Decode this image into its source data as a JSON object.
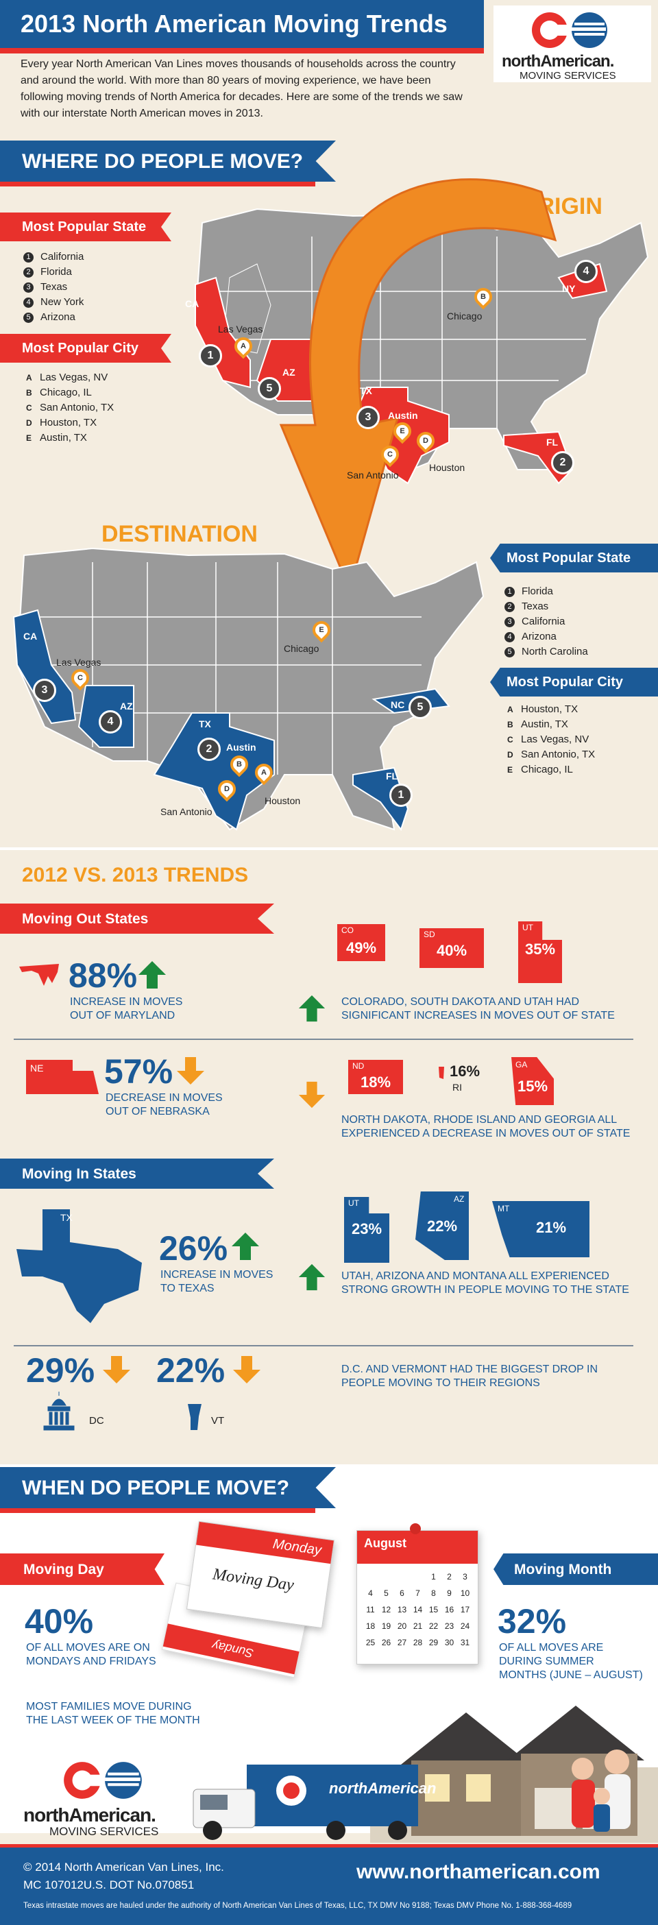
{
  "header": {
    "title": "2013 North American Moving Trends",
    "intro": "Every year North American Van Lines moves thousands of households across the country and around the world. With more than 80 years of moving experience, we have been following moving trends of North America for decades. Here are some of the trends we saw with our interstate North American moves in 2013.",
    "logo_name": "northAmerican.",
    "logo_sub": "MOVING SERVICES"
  },
  "where": {
    "banner": "WHERE DO PEOPLE MOVE?",
    "origin_label": "ORIGIN",
    "destination_label": "DESTINATION",
    "origin": {
      "state_title": "Most Popular State",
      "states": [
        "California",
        "Florida",
        "Texas",
        "New York",
        "Arizona"
      ],
      "city_title": "Most Popular City",
      "cities": [
        {
          "letter": "A",
          "name": "Las Vegas, NV"
        },
        {
          "letter": "B",
          "name": "Chicago, IL"
        },
        {
          "letter": "C",
          "name": "San Antonio, TX"
        },
        {
          "letter": "D",
          "name": "Houston, TX"
        },
        {
          "letter": "E",
          "name": "Austin, TX"
        }
      ],
      "map_labels": [
        "CA",
        "AZ",
        "TX",
        "FL",
        "NY",
        "Las Vegas",
        "Chicago",
        "Austin",
        "San Antonio",
        "Houston"
      ]
    },
    "destination": {
      "state_title": "Most Popular State",
      "states": [
        "Florida",
        "Texas",
        "California",
        "Arizona",
        "North Carolina"
      ],
      "city_title": "Most Popular City",
      "cities": [
        {
          "letter": "A",
          "name": "Houston, TX"
        },
        {
          "letter": "B",
          "name": "Austin, TX"
        },
        {
          "letter": "C",
          "name": "Las Vegas, NV"
        },
        {
          "letter": "D",
          "name": "San Antonio, TX"
        },
        {
          "letter": "E",
          "name": "Chicago, IL"
        }
      ],
      "map_labels": [
        "CA",
        "AZ",
        "TX",
        "FL",
        "NC",
        "Las Vegas",
        "Chicago",
        "Austin",
        "San Antonio",
        "Houston"
      ]
    }
  },
  "trends": {
    "title": "2012 VS. 2013 TRENDS",
    "out_banner": "Moving Out States",
    "md_pct": "88%",
    "md_text": "INCREASE IN MOVES OUT OF MARYLAND",
    "out_up": [
      {
        "st": "CO",
        "pct": "49%"
      },
      {
        "st": "SD",
        "pct": "40%"
      },
      {
        "st": "UT",
        "pct": "35%"
      }
    ],
    "out_up_text": "COLORADO, SOUTH DAKOTA AND UTAH HAD SIGNIFICANT INCREASES IN MOVES OUT OF STATE",
    "ne_label": "NE",
    "ne_pct": "57%",
    "ne_text": "DECREASE IN MOVES OUT OF NEBRASKA",
    "out_down": [
      {
        "st": "ND",
        "pct": "18%"
      },
      {
        "st": "RI",
        "pct": "16%"
      },
      {
        "st": "GA",
        "pct": "15%"
      }
    ],
    "out_down_text": "NORTH DAKOTA, RHODE ISLAND AND GEORGIA ALL EXPERIENCED A DECREASE IN MOVES OUT OF STATE",
    "in_banner": "Moving In States",
    "tx_label": "TX",
    "tx_pct": "26%",
    "tx_text": "INCREASE IN MOVES TO TEXAS",
    "in_up": [
      {
        "st": "UT",
        "pct": "23%"
      },
      {
        "st": "AZ",
        "pct": "22%"
      },
      {
        "st": "MT",
        "pct": "21%"
      }
    ],
    "in_up_text": "UTAH, ARIZONA AND MONTANA ALL EXPERIENCED STRONG GROWTH IN PEOPLE MOVING TO THE STATE",
    "dc_pct": "29%",
    "dc_label": "DC",
    "vt_pct": "22%",
    "vt_label": "VT",
    "dcvt_text": "D.C. AND VERMONT HAD THE BIGGEST DROP IN PEOPLE MOVING TO THEIR REGIONS"
  },
  "when": {
    "banner": "WHEN DO PEOPLE MOVE?",
    "day_banner": "Moving Day",
    "day_pct": "40%",
    "day_text": "OF ALL MOVES ARE ON MONDAYS AND FRIDAYS",
    "week_text": "MOST FAMILIES MOVE DURING THE LAST WEEK OF THE MONTH",
    "cal_day_header": "Monday",
    "cal_day_body": "Moving Day",
    "cal_back": "Sunday",
    "month_banner": "Moving Month",
    "month_pct": "32%",
    "month_text": "OF ALL MOVES ARE DURING SUMMER MONTHS (JUNE – AUGUST)",
    "cal_month": "August",
    "cal_rows": [
      [
        "",
        "",
        "",
        "",
        "1",
        "2",
        "3"
      ],
      [
        "4",
        "5",
        "6",
        "7",
        "8",
        "9",
        "10"
      ],
      [
        "11",
        "12",
        "13",
        "14",
        "15",
        "16",
        "17"
      ],
      [
        "18",
        "19",
        "20",
        "21",
        "22",
        "23",
        "24"
      ],
      [
        "25",
        "26",
        "27",
        "28",
        "29",
        "30",
        "31"
      ]
    ]
  },
  "footer": {
    "logo_name": "northAmerican.",
    "logo_sub": "MOVING SERVICES",
    "copyright": "© 2014 North American Van Lines, Inc.",
    "mc": "MC 107012U.S. DOT No.070851",
    "url": "www.northamerican.com",
    "legal": "Texas intrastate moves are hauled under the authority of North American Van Lines of Texas, LLC, TX DMV No 9188; Texas DMV Phone No. 1-888-368-4689",
    "truck_name": "northAmerican"
  }
}
